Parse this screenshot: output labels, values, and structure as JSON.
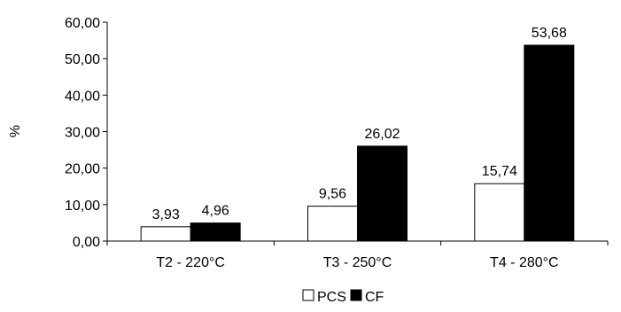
{
  "chart_data": {
    "type": "bar",
    "categories": [
      "T2 - 220°C",
      "T3 - 250°C",
      "T4 - 280°C"
    ],
    "series": [
      {
        "name": "PCS",
        "values": [
          3.93,
          9.56,
          15.74
        ],
        "labels": [
          "3,93",
          "9,56",
          "15,74"
        ],
        "color": "#ffffff"
      },
      {
        "name": "CF",
        "values": [
          4.96,
          26.02,
          53.68
        ],
        "labels": [
          "4,96",
          "26,02",
          "53,68"
        ],
        "color": "#000000"
      }
    ],
    "ylabel": "%",
    "ylim": [
      0,
      60
    ],
    "yticks": [
      0,
      10,
      20,
      30,
      40,
      50,
      60
    ],
    "ytick_labels": [
      "0,00",
      "10,00",
      "20,00",
      "30,00",
      "40,00",
      "50,00",
      "60,00"
    ],
    "grid": false,
    "legend_position": "bottom"
  }
}
